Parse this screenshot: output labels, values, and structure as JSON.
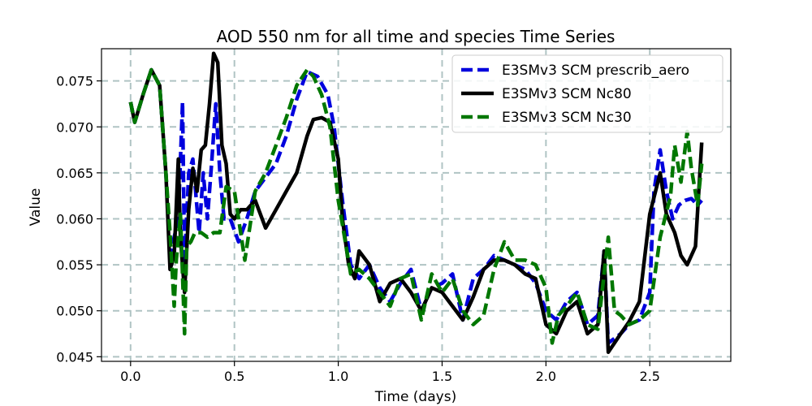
{
  "chart_data": {
    "type": "line",
    "title": "AOD 550 nm for all time and species Time Series",
    "xlabel": "Time (days)",
    "ylabel": "Value",
    "xlim": [
      -0.14,
      2.89
    ],
    "ylim": [
      0.0445,
      0.0785
    ],
    "xticks": [
      0.0,
      0.5,
      1.0,
      1.5,
      2.0,
      2.5
    ],
    "xtick_labels": [
      "0.0",
      "0.5",
      "1.0",
      "1.5",
      "2.0",
      "2.5"
    ],
    "yticks": [
      0.045,
      0.05,
      0.055,
      0.06,
      0.065,
      0.07,
      0.075
    ],
    "ytick_labels": [
      "0.045",
      "0.050",
      "0.055",
      "0.060",
      "0.065",
      "0.070",
      "0.075"
    ],
    "grid": true,
    "legend_position": "top-right",
    "series": [
      {
        "name": "E3SMv3 SCM prescrib_aero",
        "color": "#0000dd",
        "style": "dashed",
        "x": [
          0.0,
          0.02,
          0.06,
          0.1,
          0.14,
          0.17,
          0.19,
          0.21,
          0.23,
          0.25,
          0.26,
          0.28,
          0.3,
          0.33,
          0.35,
          0.37,
          0.39,
          0.41,
          0.43,
          0.45,
          0.48,
          0.52,
          0.56,
          0.6,
          0.65,
          0.7,
          0.75,
          0.8,
          0.85,
          0.9,
          0.95,
          0.98,
          1.02,
          1.06,
          1.1,
          1.15,
          1.2,
          1.25,
          1.3,
          1.35,
          1.4,
          1.45,
          1.5,
          1.55,
          1.6,
          1.65,
          1.7,
          1.75,
          1.8,
          1.85,
          1.9,
          1.95,
          2.0,
          2.05,
          2.1,
          2.15,
          2.2,
          2.25,
          2.28,
          2.3,
          2.33,
          2.36,
          2.4,
          2.45,
          2.5,
          2.52,
          2.55,
          2.58,
          2.61,
          2.64,
          2.67,
          2.7,
          2.73,
          2.75
        ],
        "values": [
          0.0727,
          0.0705,
          0.0735,
          0.0762,
          0.0745,
          0.065,
          0.056,
          0.058,
          0.06,
          0.0727,
          0.055,
          0.065,
          0.0665,
          0.0585,
          0.065,
          0.06,
          0.066,
          0.0725,
          0.065,
          0.06,
          0.06,
          0.0575,
          0.06,
          0.063,
          0.0645,
          0.066,
          0.069,
          0.073,
          0.076,
          0.0755,
          0.0735,
          0.07,
          0.062,
          0.055,
          0.0535,
          0.055,
          0.0525,
          0.051,
          0.053,
          0.0545,
          0.05,
          0.0525,
          0.053,
          0.054,
          0.049,
          0.0535,
          0.0545,
          0.056,
          0.0555,
          0.055,
          0.0545,
          0.053,
          0.05,
          0.049,
          0.051,
          0.052,
          0.0485,
          0.0495,
          0.0565,
          0.0465,
          0.047,
          0.0475,
          0.0485,
          0.049,
          0.052,
          0.063,
          0.0675,
          0.063,
          0.06,
          0.0615,
          0.062,
          0.0622,
          0.0615,
          0.062
        ]
      },
      {
        "name": "E3SMv3 SCM Nc80",
        "color": "#000000",
        "style": "solid",
        "x": [
          0.0,
          0.02,
          0.06,
          0.1,
          0.14,
          0.17,
          0.19,
          0.21,
          0.23,
          0.24,
          0.26,
          0.28,
          0.3,
          0.32,
          0.34,
          0.36,
          0.38,
          0.4,
          0.42,
          0.44,
          0.46,
          0.48,
          0.5,
          0.53,
          0.56,
          0.6,
          0.65,
          0.7,
          0.75,
          0.8,
          0.85,
          0.88,
          0.92,
          0.96,
          1.0,
          1.02,
          1.05,
          1.08,
          1.1,
          1.15,
          1.2,
          1.25,
          1.3,
          1.35,
          1.4,
          1.45,
          1.5,
          1.55,
          1.6,
          1.65,
          1.7,
          1.75,
          1.8,
          1.85,
          1.9,
          1.95,
          2.0,
          2.05,
          2.1,
          2.15,
          2.2,
          2.25,
          2.28,
          2.3,
          2.33,
          2.36,
          2.4,
          2.45,
          2.5,
          2.55,
          2.58,
          2.62,
          2.65,
          2.68,
          2.72,
          2.75
        ],
        "values": [
          0.0727,
          0.0705,
          0.0735,
          0.0762,
          0.0745,
          0.065,
          0.0545,
          0.056,
          0.0665,
          0.058,
          0.052,
          0.061,
          0.0655,
          0.063,
          0.0675,
          0.068,
          0.0725,
          0.078,
          0.077,
          0.068,
          0.066,
          0.0605,
          0.06,
          0.061,
          0.061,
          0.062,
          0.059,
          0.061,
          0.063,
          0.065,
          0.069,
          0.0708,
          0.071,
          0.0705,
          0.0665,
          0.06,
          0.055,
          0.0535,
          0.0565,
          0.055,
          0.051,
          0.053,
          0.0535,
          0.052,
          0.05,
          0.0525,
          0.052,
          0.0505,
          0.049,
          0.0515,
          0.0545,
          0.0555,
          0.0555,
          0.055,
          0.054,
          0.0535,
          0.0485,
          0.0475,
          0.05,
          0.051,
          0.0475,
          0.0485,
          0.0565,
          0.0455,
          0.0465,
          0.0475,
          0.0488,
          0.051,
          0.0605,
          0.065,
          0.0605,
          0.0585,
          0.056,
          0.055,
          0.057,
          0.0683
        ]
      },
      {
        "name": "E3SMv3 SCM Nc30",
        "color": "#007700",
        "style": "dashed",
        "x": [
          0.0,
          0.02,
          0.06,
          0.1,
          0.14,
          0.17,
          0.19,
          0.21,
          0.22,
          0.24,
          0.26,
          0.27,
          0.29,
          0.31,
          0.34,
          0.37,
          0.4,
          0.43,
          0.46,
          0.5,
          0.55,
          0.6,
          0.65,
          0.7,
          0.75,
          0.8,
          0.85,
          0.88,
          0.92,
          0.96,
          1.0,
          1.03,
          1.06,
          1.1,
          1.15,
          1.2,
          1.25,
          1.3,
          1.35,
          1.4,
          1.45,
          1.5,
          1.55,
          1.6,
          1.65,
          1.7,
          1.75,
          1.8,
          1.85,
          1.9,
          1.95,
          2.0,
          2.03,
          2.06,
          2.1,
          2.15,
          2.2,
          2.25,
          2.3,
          2.33,
          2.36,
          2.4,
          2.45,
          2.5,
          2.55,
          2.6,
          2.62,
          2.65,
          2.68,
          2.7,
          2.73,
          2.75
        ],
        "values": [
          0.0727,
          0.0705,
          0.0735,
          0.0762,
          0.0745,
          0.065,
          0.0585,
          0.0505,
          0.0555,
          0.0605,
          0.0475,
          0.057,
          0.0575,
          0.0585,
          0.0585,
          0.058,
          0.0585,
          0.0585,
          0.0635,
          0.063,
          0.0555,
          0.063,
          0.065,
          0.068,
          0.071,
          0.0745,
          0.0762,
          0.0755,
          0.0735,
          0.07,
          0.062,
          0.058,
          0.054,
          0.0545,
          0.0535,
          0.052,
          0.0505,
          0.0535,
          0.054,
          0.049,
          0.054,
          0.052,
          0.0535,
          0.05,
          0.0485,
          0.0495,
          0.0545,
          0.0575,
          0.0555,
          0.0555,
          0.055,
          0.0525,
          0.0465,
          0.0495,
          0.0505,
          0.052,
          0.0485,
          0.048,
          0.058,
          0.05,
          0.0495,
          0.0485,
          0.049,
          0.05,
          0.058,
          0.0625,
          0.068,
          0.064,
          0.0695,
          0.0655,
          0.0615,
          0.066
        ]
      }
    ]
  }
}
